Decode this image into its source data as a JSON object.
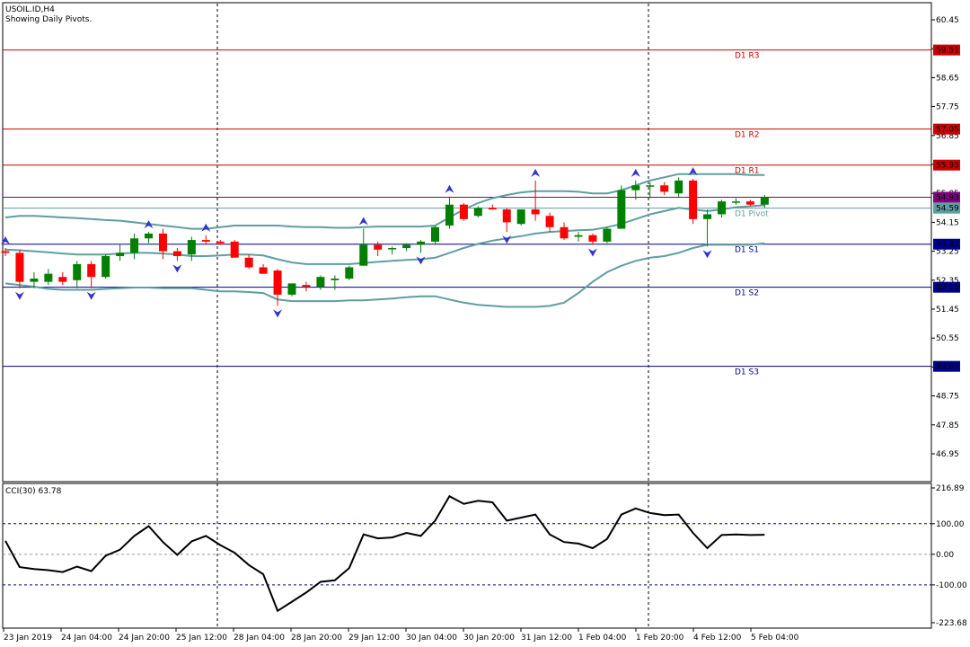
{
  "header": {
    "symbol": "USOIL.ID,H4",
    "subtitle": "Showing Daily Pivots."
  },
  "colors": {
    "bull": "#008000",
    "bear": "#ff0000",
    "bands": "#5f9ea0",
    "resistance": "#cc0000",
    "support": "#00008b",
    "pivot": "#5f9ea0",
    "price_label": "#800080",
    "cci_line": "#000000",
    "cci_levels": "#00008b"
  },
  "chart_data": [
    {
      "type": "candlestick",
      "title": "USOIL.ID,H4",
      "y_ticks": [
        "60.45",
        "59.55",
        "58.65",
        "57.75",
        "56.85",
        "55.95",
        "55.05",
        "54.15",
        "53.25",
        "52.35",
        "51.45",
        "50.55",
        "49.65",
        "48.75",
        "47.85",
        "46.95"
      ],
      "ylim": [
        46.0,
        61.2
      ],
      "x_ticks": [
        "23 Jan 2019",
        "24 Jan 04:00",
        "24 Jan 20:00",
        "25 Jan 12:00",
        "28 Jan 04:00",
        "28 Jan 20:00",
        "29 Jan 12:00",
        "30 Jan 04:00",
        "30 Jan 20:00",
        "31 Jan 12:00",
        "1 Feb 04:00",
        "1 Feb 20:00",
        "4 Feb 12:00",
        "5 Feb 04:00"
      ],
      "pivots": [
        {
          "name": "D1 R3",
          "value": 59.51,
          "label": "59.51",
          "kind": "resistance"
        },
        {
          "name": "D1 R2",
          "value": 57.05,
          "label": "57.05",
          "kind": "resistance"
        },
        {
          "name": "D1 R1",
          "value": 55.93,
          "label": "55.93",
          "kind": "resistance"
        },
        {
          "name": "D1 Pivot",
          "value": 54.59,
          "label": "54.59",
          "kind": "pivot"
        },
        {
          "name": "D1 S1",
          "value": 53.47,
          "label": "53.47",
          "kind": "support"
        },
        {
          "name": "D1 S2",
          "value": 52.13,
          "label": "52.13",
          "kind": "support"
        },
        {
          "name": "D1 S3",
          "value": 49.67,
          "label": "49.67",
          "kind": "support"
        }
      ],
      "current_price": {
        "value": 54.93,
        "label": "54.93"
      },
      "candles": [
        {
          "o": 53.25,
          "h": 53.35,
          "l": 53.1,
          "c": 53.2
        },
        {
          "o": 53.2,
          "h": 53.3,
          "l": 52.1,
          "c": 52.3
        },
        {
          "o": 52.3,
          "h": 52.6,
          "l": 52.1,
          "c": 52.4
        },
        {
          "o": 52.3,
          "h": 52.7,
          "l": 52.2,
          "c": 52.55
        },
        {
          "o": 52.45,
          "h": 52.6,
          "l": 52.2,
          "c": 52.3
        },
        {
          "o": 52.35,
          "h": 52.95,
          "l": 52.1,
          "c": 52.85
        },
        {
          "o": 52.85,
          "h": 52.95,
          "l": 52.1,
          "c": 52.45
        },
        {
          "o": 52.45,
          "h": 53.15,
          "l": 52.4,
          "c": 53.1
        },
        {
          "o": 53.1,
          "h": 53.45,
          "l": 52.95,
          "c": 53.2
        },
        {
          "o": 53.2,
          "h": 53.8,
          "l": 53.0,
          "c": 53.65
        },
        {
          "o": 53.65,
          "h": 53.85,
          "l": 53.5,
          "c": 53.8
        },
        {
          "o": 53.8,
          "h": 53.95,
          "l": 53.0,
          "c": 53.25
        },
        {
          "o": 53.25,
          "h": 53.35,
          "l": 52.95,
          "c": 53.1
        },
        {
          "o": 53.15,
          "h": 53.7,
          "l": 52.95,
          "c": 53.6
        },
        {
          "o": 53.6,
          "h": 53.75,
          "l": 53.45,
          "c": 53.55
        },
        {
          "o": 53.55,
          "h": 53.6,
          "l": 53.45,
          "c": 53.5
        },
        {
          "o": 53.55,
          "h": 53.6,
          "l": 53.1,
          "c": 53.05
        },
        {
          "o": 53.05,
          "h": 53.15,
          "l": 52.7,
          "c": 52.75
        },
        {
          "o": 52.75,
          "h": 52.85,
          "l": 52.55,
          "c": 52.55
        },
        {
          "o": 52.65,
          "h": 52.7,
          "l": 51.55,
          "c": 51.9
        },
        {
          "o": 51.9,
          "h": 52.25,
          "l": 51.85,
          "c": 52.25
        },
        {
          "o": 52.2,
          "h": 52.3,
          "l": 52.0,
          "c": 52.15
        },
        {
          "o": 52.15,
          "h": 52.5,
          "l": 52.05,
          "c": 52.45
        },
        {
          "o": 52.35,
          "h": 52.5,
          "l": 52.05,
          "c": 52.4
        },
        {
          "o": 52.4,
          "h": 52.8,
          "l": 52.35,
          "c": 52.75
        },
        {
          "o": 52.8,
          "h": 53.95,
          "l": 52.8,
          "c": 53.45
        },
        {
          "o": 53.45,
          "h": 53.55,
          "l": 53.1,
          "c": 53.3
        },
        {
          "o": 53.35,
          "h": 53.4,
          "l": 53.15,
          "c": 53.35
        },
        {
          "o": 53.35,
          "h": 53.5,
          "l": 53.25,
          "c": 53.45
        },
        {
          "o": 53.45,
          "h": 53.6,
          "l": 53.2,
          "c": 53.55
        },
        {
          "o": 53.55,
          "h": 54.05,
          "l": 53.45,
          "c": 54.0
        },
        {
          "o": 54.05,
          "h": 54.95,
          "l": 53.95,
          "c": 54.7
        },
        {
          "o": 54.7,
          "h": 54.75,
          "l": 54.2,
          "c": 54.25
        },
        {
          "o": 54.35,
          "h": 54.65,
          "l": 54.3,
          "c": 54.6
        },
        {
          "o": 54.6,
          "h": 54.7,
          "l": 54.55,
          "c": 54.55
        },
        {
          "o": 54.55,
          "h": 54.6,
          "l": 53.85,
          "c": 54.15
        },
        {
          "o": 54.1,
          "h": 54.55,
          "l": 54.05,
          "c": 54.55
        },
        {
          "o": 54.55,
          "h": 55.45,
          "l": 54.2,
          "c": 54.4
        },
        {
          "o": 54.35,
          "h": 54.45,
          "l": 53.85,
          "c": 54.0
        },
        {
          "o": 54.0,
          "h": 54.15,
          "l": 53.6,
          "c": 53.65
        },
        {
          "o": 53.7,
          "h": 53.85,
          "l": 53.55,
          "c": 53.75
        },
        {
          "o": 53.75,
          "h": 53.8,
          "l": 53.45,
          "c": 53.55
        },
        {
          "o": 53.55,
          "h": 54.0,
          "l": 53.5,
          "c": 53.95
        },
        {
          "o": 53.95,
          "h": 55.3,
          "l": 53.95,
          "c": 55.15
        },
        {
          "o": 55.15,
          "h": 55.45,
          "l": 54.85,
          "c": 55.3
        },
        {
          "o": 55.3,
          "h": 55.4,
          "l": 54.9,
          "c": 55.3
        },
        {
          "o": 55.3,
          "h": 55.4,
          "l": 55.0,
          "c": 55.1
        },
        {
          "o": 55.05,
          "h": 55.55,
          "l": 54.95,
          "c": 55.45
        },
        {
          "o": 55.45,
          "h": 55.5,
          "l": 54.1,
          "c": 54.25
        },
        {
          "o": 54.25,
          "h": 54.55,
          "l": 53.4,
          "c": 54.4
        },
        {
          "o": 54.4,
          "h": 54.85,
          "l": 54.3,
          "c": 54.8
        },
        {
          "o": 54.8,
          "h": 54.9,
          "l": 54.7,
          "c": 54.8
        },
        {
          "o": 54.8,
          "h": 54.85,
          "l": 54.65,
          "c": 54.7
        },
        {
          "o": 54.7,
          "h": 55.0,
          "l": 54.6,
          "c": 54.93
        }
      ],
      "bollinger": {
        "upper": [
          54.3,
          54.35,
          54.35,
          54.33,
          54.3,
          54.28,
          54.25,
          54.22,
          54.2,
          54.15,
          54.1,
          54.05,
          54.0,
          53.95,
          53.95,
          54.0,
          54.05,
          54.05,
          54.05,
          54.05,
          54.02,
          54.0,
          54.0,
          53.98,
          53.98,
          54.0,
          54.02,
          54.02,
          54.02,
          54.02,
          54.05,
          54.3,
          54.55,
          54.75,
          54.9,
          55.0,
          55.08,
          55.12,
          55.12,
          55.12,
          55.1,
          55.05,
          55.05,
          55.15,
          55.3,
          55.45,
          55.55,
          55.65,
          55.65,
          55.65,
          55.65,
          55.65,
          55.62,
          55.62
        ],
        "middle": [
          53.3,
          53.28,
          53.25,
          53.22,
          53.18,
          53.15,
          53.15,
          53.15,
          53.18,
          53.2,
          53.2,
          53.18,
          53.15,
          53.1,
          53.1,
          53.12,
          53.15,
          53.15,
          53.12,
          53.0,
          52.9,
          52.85,
          52.85,
          52.85,
          52.85,
          52.88,
          52.92,
          52.95,
          52.98,
          53.0,
          53.05,
          53.2,
          53.35,
          53.48,
          53.58,
          53.65,
          53.72,
          53.8,
          53.85,
          53.88,
          53.9,
          53.92,
          54.0,
          54.1,
          54.25,
          54.4,
          54.5,
          54.6,
          54.55,
          54.5,
          54.55,
          54.62,
          54.65,
          54.68
        ],
        "lower": [
          52.25,
          52.2,
          52.15,
          52.08,
          52.05,
          52.05,
          52.05,
          52.08,
          52.1,
          52.12,
          52.12,
          52.1,
          52.1,
          52.1,
          52.05,
          52.0,
          52.0,
          51.98,
          51.95,
          51.75,
          51.7,
          51.7,
          51.7,
          51.7,
          51.72,
          51.72,
          51.75,
          51.78,
          51.82,
          51.85,
          51.85,
          51.75,
          51.65,
          51.58,
          51.55,
          51.52,
          51.52,
          51.52,
          51.55,
          51.65,
          51.95,
          52.3,
          52.6,
          52.8,
          52.95,
          53.05,
          53.1,
          53.2,
          53.35,
          53.45,
          53.45,
          53.45,
          53.45,
          53.5
        ]
      },
      "fractals_up": [
        0,
        10,
        14,
        25,
        31,
        37,
        44,
        48
      ],
      "fractals_down": [
        1,
        6,
        12,
        19,
        29,
        35,
        41,
        49
      ]
    },
    {
      "type": "line",
      "title": "CCI(30) 63.78",
      "y_ticks": [
        "216.89",
        "100.00",
        "0.00",
        "-100.00",
        "-223.68"
      ],
      "ylim": [
        -223.68,
        216.89
      ],
      "levels": [
        100,
        0,
        -100
      ],
      "values": [
        44,
        -42,
        -48,
        -52,
        -58,
        -40,
        -55,
        -5,
        15,
        60,
        92,
        40,
        -2,
        42,
        60,
        30,
        5,
        -35,
        -65,
        -185,
        -155,
        -125,
        -90,
        -85,
        -45,
        65,
        52,
        55,
        70,
        60,
        110,
        190,
        165,
        175,
        170,
        110,
        120,
        130,
        65,
        40,
        35,
        20,
        50,
        130,
        150,
        135,
        128,
        130,
        70,
        20,
        63,
        65,
        63,
        63.78
      ]
    }
  ]
}
